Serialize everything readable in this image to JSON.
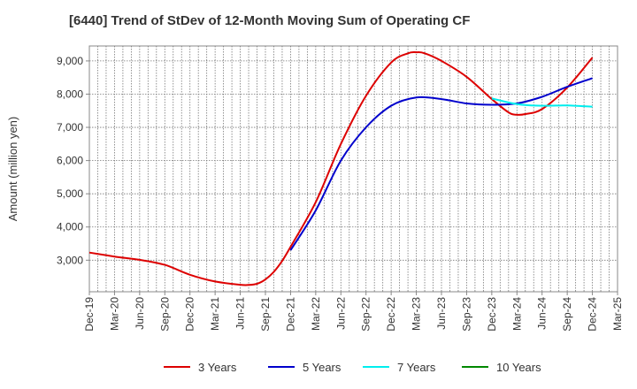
{
  "chart_data": {
    "type": "line",
    "title": "[6440]  Trend of StDev of 12-Month Moving Sum of Operating CF",
    "xlabel": "",
    "ylabel": "Amount (million yen)",
    "ylim": [
      2050,
      9450
    ],
    "yticks": [
      3000,
      4000,
      5000,
      6000,
      7000,
      8000,
      9000
    ],
    "ytick_labels": [
      "3,000",
      "4,000",
      "5,000",
      "6,000",
      "7,000",
      "8,000",
      "9,000"
    ],
    "x_ticks": [
      "Dec-19",
      "Mar-20",
      "Jun-20",
      "Sep-20",
      "Dec-20",
      "Mar-21",
      "Jun-21",
      "Sep-21",
      "Dec-21",
      "Mar-22",
      "Jun-22",
      "Sep-22",
      "Dec-22",
      "Mar-23",
      "Jun-23",
      "Sep-23",
      "Dec-23",
      "Mar-24",
      "Jun-24",
      "Sep-24",
      "Dec-24",
      "Mar-25"
    ],
    "grid": true,
    "legend_position": "bottom",
    "series": [
      {
        "name": "3 Years",
        "color": "#dd0000",
        "points": [
          [
            "Dec-19",
            3230
          ],
          [
            "Mar-20",
            3110
          ],
          [
            "Jun-20",
            3010
          ],
          [
            "Sep-20",
            2860
          ],
          [
            "Dec-20",
            2560
          ],
          [
            "Mar-21",
            2360
          ],
          [
            "Jun-21",
            2260
          ],
          [
            "Jul-21",
            2255
          ],
          [
            "Aug-21",
            2290
          ],
          [
            "Sep-21",
            2420
          ],
          [
            "Oct-21",
            2650
          ],
          [
            "Nov-21",
            2980
          ],
          [
            "Dec-21",
            3400
          ],
          [
            "Mar-22",
            4750
          ],
          [
            "Jun-22",
            6500
          ],
          [
            "Sep-22",
            7950
          ],
          [
            "Dec-22",
            8950
          ],
          [
            "Feb-23",
            9230
          ],
          [
            "Mar-23",
            9260
          ],
          [
            "Apr-23",
            9230
          ],
          [
            "Jun-23",
            9000
          ],
          [
            "Sep-23",
            8520
          ],
          [
            "Dec-23",
            7850
          ],
          [
            "Feb-24",
            7450
          ],
          [
            "Mar-24",
            7380
          ],
          [
            "Apr-24",
            7400
          ],
          [
            "Jun-24",
            7550
          ],
          [
            "Sep-24",
            8200
          ],
          [
            "Dec-24",
            9100
          ]
        ]
      },
      {
        "name": "5 Years",
        "color": "#0000cc",
        "points": [
          [
            "Dec-21",
            3300
          ],
          [
            "Mar-22",
            4500
          ],
          [
            "Jun-22",
            6000
          ],
          [
            "Sep-22",
            7000
          ],
          [
            "Dec-22",
            7650
          ],
          [
            "Mar-23",
            7900
          ],
          [
            "Jun-23",
            7850
          ],
          [
            "Sep-23",
            7720
          ],
          [
            "Dec-23",
            7680
          ],
          [
            "Mar-24",
            7720
          ],
          [
            "Jun-24",
            7920
          ],
          [
            "Sep-24",
            8220
          ],
          [
            "Dec-24",
            8480
          ]
        ]
      },
      {
        "name": "7 Years",
        "color": "#00eeee",
        "points": [
          [
            "Dec-23",
            7870
          ],
          [
            "Mar-24",
            7700
          ],
          [
            "Jun-24",
            7650
          ],
          [
            "Sep-24",
            7660
          ],
          [
            "Dec-24",
            7620
          ]
        ]
      },
      {
        "name": "10 Years",
        "color": "#008800",
        "points": []
      }
    ]
  }
}
